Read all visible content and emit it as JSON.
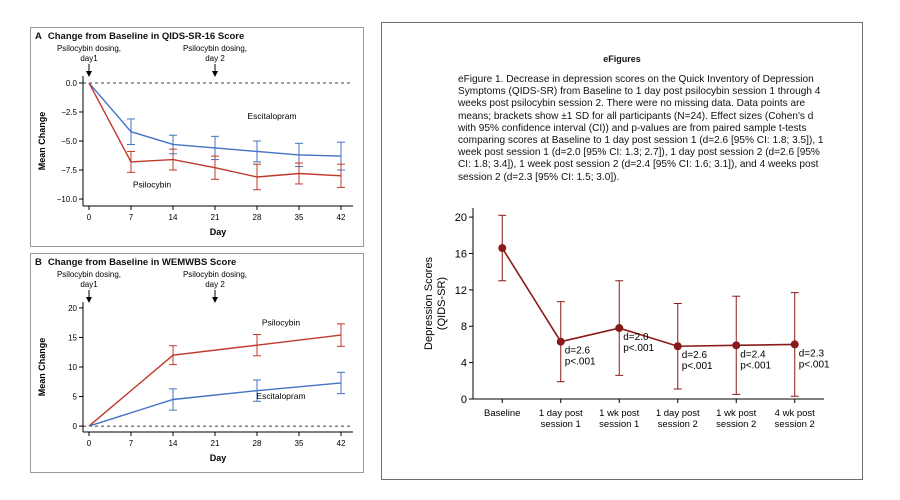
{
  "panel_a": {
    "letter": "A",
    "title": "Change from Baseline in QIDS-SR-16 Score"
  },
  "panel_b": {
    "letter": "B",
    "title": "Change from Baseline in WEMWBS Score"
  },
  "panel_c": {
    "header": "eFigures",
    "caption": "eFigure 1. Decrease in depression scores on the Quick Inventory of Depression Symptoms (QIDS-SR) from Baseline to 1 day post psilocybin session 1 through 4 weeks post psilocybin session 2. There were no missing data. Data points are means; brackets show ±1 SD for all participants (N=24). Effect sizes (Cohen's d with 95% confidence interval (CI)) and p-values are from paired sample t-tests comparing scores at Baseline to 1 day post session 1 (d=2.6 [95% CI: 1.8; 3.5]), 1 week post session 1 (d=2.0 [95% CI: 1.3; 2.7]), 1 day post session 2 (d=2.6 [95% CI: 1.8; 3.4]), 1 week post session 2 (d=2.4 [95% CI: 1.6; 3.1]), and 4 weeks post session 2 (d=2.3 [95% CI: 1.5; 3.0])."
  },
  "chart_data": [
    {
      "type": "line",
      "title": "Change from Baseline in QIDS-SR-16 Score",
      "xlabel": "Day",
      "ylabel": "Mean Change",
      "xlim": [
        -1,
        44
      ],
      "ylim": [
        -10.6,
        0.6
      ],
      "x_ticks": [
        0,
        7,
        14,
        21,
        28,
        35,
        42
      ],
      "y_ticks": [
        0,
        -2.5,
        -5,
        -7.5,
        -10
      ],
      "y_tick_labels": [
        "0.0",
        "−2.5",
        "−5.0",
        "−7.5",
        "−10.0"
      ],
      "reference_line": 0,
      "annotations": [
        {
          "text_lines": [
            "Psilocybin dosing,",
            "day1"
          ],
          "x": 0
        },
        {
          "text_lines": [
            "Psilocybin dosing,",
            "day 2"
          ],
          "x": 21
        }
      ],
      "series": [
        {
          "name": "Escitalopram",
          "color": "#4472c4",
          "label_x": 30.5,
          "label_y": -3.1,
          "x": [
            0,
            2,
            7,
            14,
            21,
            28,
            35,
            42
          ],
          "y": [
            0,
            null,
            -4.2,
            -5.3,
            -5.6,
            -5.9,
            -6.2,
            -6.3
          ],
          "err": [
            0,
            null,
            1.1,
            0.8,
            1.0,
            0.9,
            1.0,
            1.2
          ]
        },
        {
          "name": "Psilocybin",
          "color": "#c0392b",
          "label_x": 10.5,
          "label_y": -9.0,
          "x": [
            0,
            2,
            7,
            14,
            21,
            28,
            35,
            42
          ],
          "y": [
            0,
            null,
            -6.8,
            -6.6,
            -7.3,
            -8.1,
            -7.8,
            -8.0
          ],
          "err": [
            0,
            null,
            0.9,
            0.9,
            1.0,
            1.1,
            0.9,
            1.0
          ]
        }
      ]
    },
    {
      "type": "line",
      "title": "Change from Baseline in WEMWBS Score",
      "xlabel": "Day",
      "ylabel": "Mean Change",
      "xlim": [
        -1,
        44
      ],
      "ylim": [
        -1,
        21
      ],
      "x_ticks": [
        0,
        7,
        14,
        21,
        28,
        35,
        42
      ],
      "y_ticks": [
        0,
        5,
        10,
        15,
        20
      ],
      "y_tick_labels": [
        "0",
        "5",
        "10",
        "15",
        "20"
      ],
      "reference_line": 0,
      "annotations": [
        {
          "text_lines": [
            "Psilocybin dosing,",
            "day1"
          ],
          "x": 0
        },
        {
          "text_lines": [
            "Psilocybin dosing,",
            "day 2"
          ],
          "x": 21
        }
      ],
      "series": [
        {
          "name": "Psilocybin",
          "color": "#c0392b",
          "label_x": 32,
          "label_y": 17,
          "x": [
            0,
            14,
            28,
            42
          ],
          "y": [
            0,
            12.0,
            13.7,
            15.4
          ],
          "err": [
            0,
            1.6,
            1.8,
            1.9
          ]
        },
        {
          "name": "Escitalopram",
          "color": "#4472c4",
          "label_x": 32,
          "label_y": 4.6,
          "x": [
            0,
            14,
            28,
            42
          ],
          "y": [
            0,
            4.5,
            6.0,
            7.3
          ],
          "err": [
            0,
            1.8,
            1.8,
            1.8
          ]
        }
      ]
    },
    {
      "type": "line",
      "xlabel": "",
      "ylabel_lines": [
        "Depression Scores",
        "(QIDS-SR)"
      ],
      "ylim": [
        0,
        21
      ],
      "y_ticks": [
        0,
        4,
        8,
        12,
        16,
        20
      ],
      "categories": [
        [
          "Baseline"
        ],
        [
          "1 day post",
          "session 1"
        ],
        [
          "1 wk post",
          "session 1"
        ],
        [
          "1 day post",
          "session 2"
        ],
        [
          "1 wk post",
          "session 2"
        ],
        [
          "4 wk post",
          "session 2"
        ]
      ],
      "color": "#8b1a1a",
      "values": [
        16.6,
        6.3,
        7.8,
        5.8,
        5.9,
        6.0
      ],
      "sd": [
        3.6,
        4.4,
        5.2,
        4.7,
        5.4,
        5.7
      ],
      "annotations": [
        {
          "index": 1,
          "lines": [
            "d=2.6",
            "p<.001"
          ]
        },
        {
          "index": 2,
          "lines": [
            "d=2.0",
            "p<.001"
          ]
        },
        {
          "index": 3,
          "lines": [
            "d=2.6",
            "p<.001"
          ]
        },
        {
          "index": 4,
          "lines": [
            "d=2.4",
            "p<.001"
          ]
        },
        {
          "index": 5,
          "lines": [
            "d=2.3",
            "p<.001"
          ]
        }
      ]
    }
  ]
}
